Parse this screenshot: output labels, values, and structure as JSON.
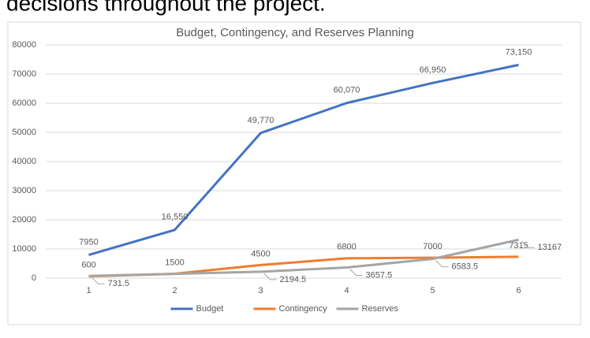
{
  "header_text": "decisions throughout the project.",
  "chart_data": {
    "type": "line",
    "title": "Budget, Contingency, and Reserves Planning",
    "categories": [
      "1",
      "2",
      "3",
      "4",
      "5",
      "6"
    ],
    "series": [
      {
        "name": "Budget",
        "color": "#4472c4",
        "values": [
          7950,
          16550,
          49770,
          60070,
          66950,
          73150
        ],
        "value_labels": [
          "7950",
          "16,550",
          "49,770",
          "60,070",
          "66,950",
          "73,150"
        ]
      },
      {
        "name": "Contingency",
        "color": "#ed7d31",
        "values": [
          600,
          1500,
          4500,
          6800,
          7000,
          7315
        ]
      },
      {
        "name": "Reserves",
        "color": "#a5a5a5",
        "values": [
          731.5,
          1463,
          2194.5,
          3657.5,
          6583.5,
          13167
        ],
        "value_labels": [
          "731.5",
          null,
          "2194.5",
          "3657.5",
          "6583.5",
          "13167"
        ]
      }
    ],
    "ylim": [
      0,
      80000
    ],
    "yticks": [
      0,
      10000,
      20000,
      30000,
      40000,
      50000,
      60000,
      70000,
      80000
    ],
    "grid": true,
    "legend": "bottom"
  }
}
